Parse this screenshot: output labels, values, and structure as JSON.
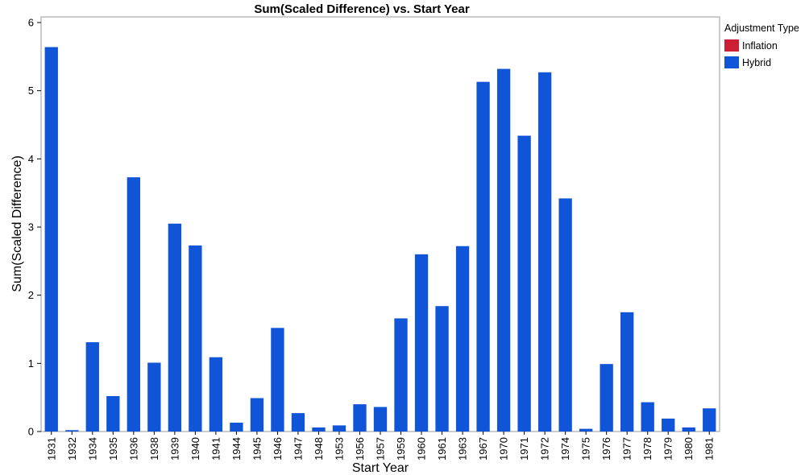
{
  "chart_data": {
    "type": "bar",
    "title": "Sum(Scaled Difference) vs. Start Year",
    "xlabel": "Start Year",
    "ylabel": "Sum(Scaled Difference)",
    "ylim": [
      0,
      6
    ],
    "yticks": [
      0,
      1,
      2,
      3,
      4,
      5,
      6
    ],
    "grid": false,
    "categories": [
      "1931",
      "1932",
      "1934",
      "1935",
      "1936",
      "1938",
      "1939",
      "1940",
      "1941",
      "1944",
      "1945",
      "1946",
      "1947",
      "1948",
      "1953",
      "1956",
      "1957",
      "1959",
      "1960",
      "1961",
      "1963",
      "1967",
      "1970",
      "1971",
      "1972",
      "1974",
      "1975",
      "1976",
      "1977",
      "1978",
      "1979",
      "1980",
      "1981"
    ],
    "series": [
      {
        "name": "Hybrid",
        "color": "#1055d8",
        "values": [
          5.64,
          0.02,
          1.31,
          0.52,
          3.73,
          1.01,
          3.05,
          2.73,
          1.09,
          0.13,
          0.49,
          1.52,
          0.27,
          0.06,
          0.09,
          0.4,
          0.36,
          1.66,
          2.6,
          1.84,
          2.72,
          5.13,
          5.32,
          4.34,
          5.27,
          3.42,
          0.04,
          0.99,
          1.75,
          0.43,
          0.19,
          0.06,
          0.34
        ]
      }
    ],
    "legend": {
      "title": "Adjustment Type",
      "position": "right",
      "entries": [
        {
          "label": "Inflation",
          "color": "#cc1f35"
        },
        {
          "label": "Hybrid",
          "color": "#1055d8"
        }
      ]
    }
  }
}
